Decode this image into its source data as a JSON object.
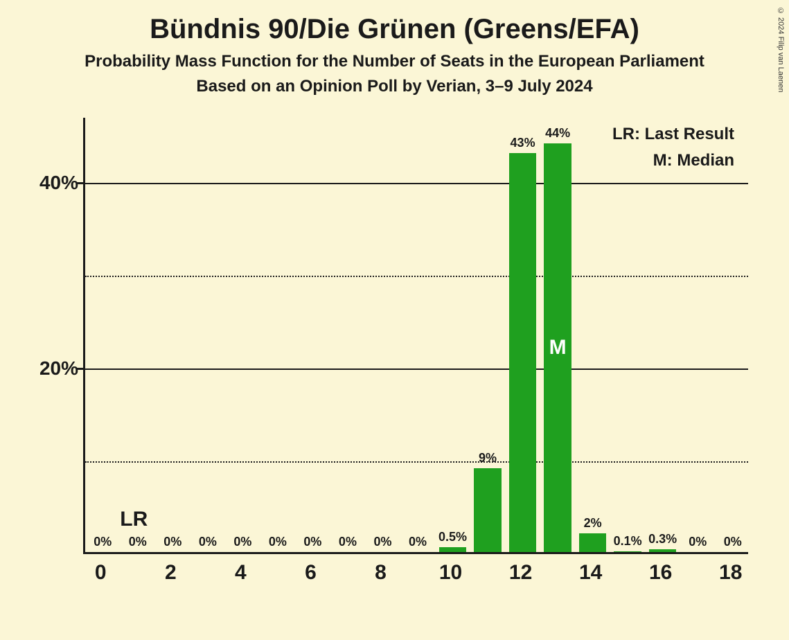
{
  "copyright": "© 2024 Filip van Laenen",
  "title": "Bündnis 90/Die Grünen (Greens/EFA)",
  "subtitle1": "Probability Mass Function for the Number of Seats in the European Parliament",
  "subtitle2": "Based on an Opinion Poll by Verian, 3–9 July 2024",
  "chart": {
    "type": "bar",
    "background_color": "#fbf6d6",
    "bar_color": "#1fa01f",
    "text_color": "#1a1a1a",
    "ylim": [
      0,
      47
    ],
    "y_major_ticks": [
      20,
      40
    ],
    "y_minor_ticks": [
      10,
      30
    ],
    "y_labels": {
      "20": "20%",
      "40": "40%"
    },
    "x_range": [
      0,
      18
    ],
    "x_tick_labels": [
      "0",
      "2",
      "4",
      "6",
      "8",
      "10",
      "12",
      "14",
      "16",
      "18"
    ],
    "x_tick_positions": [
      0,
      2,
      4,
      6,
      8,
      10,
      12,
      14,
      16,
      18
    ],
    "bar_width_ratio": 0.78,
    "values": [
      0,
      0,
      0,
      0,
      0,
      0,
      0,
      0,
      0,
      0,
      0.5,
      9,
      43,
      44,
      2,
      0.1,
      0.3,
      0,
      0
    ],
    "value_labels": [
      "0%",
      "0%",
      "0%",
      "0%",
      "0%",
      "0%",
      "0%",
      "0%",
      "0%",
      "0%",
      "0.5%",
      "9%",
      "43%",
      "44%",
      "2%",
      "0.1%",
      "0.3%",
      "0%",
      "0%"
    ],
    "median_index": 13,
    "median_label": "M",
    "lr_index": 0,
    "lr_label": "LR",
    "legend": {
      "lr": "LR: Last Result",
      "m": "M: Median"
    }
  }
}
